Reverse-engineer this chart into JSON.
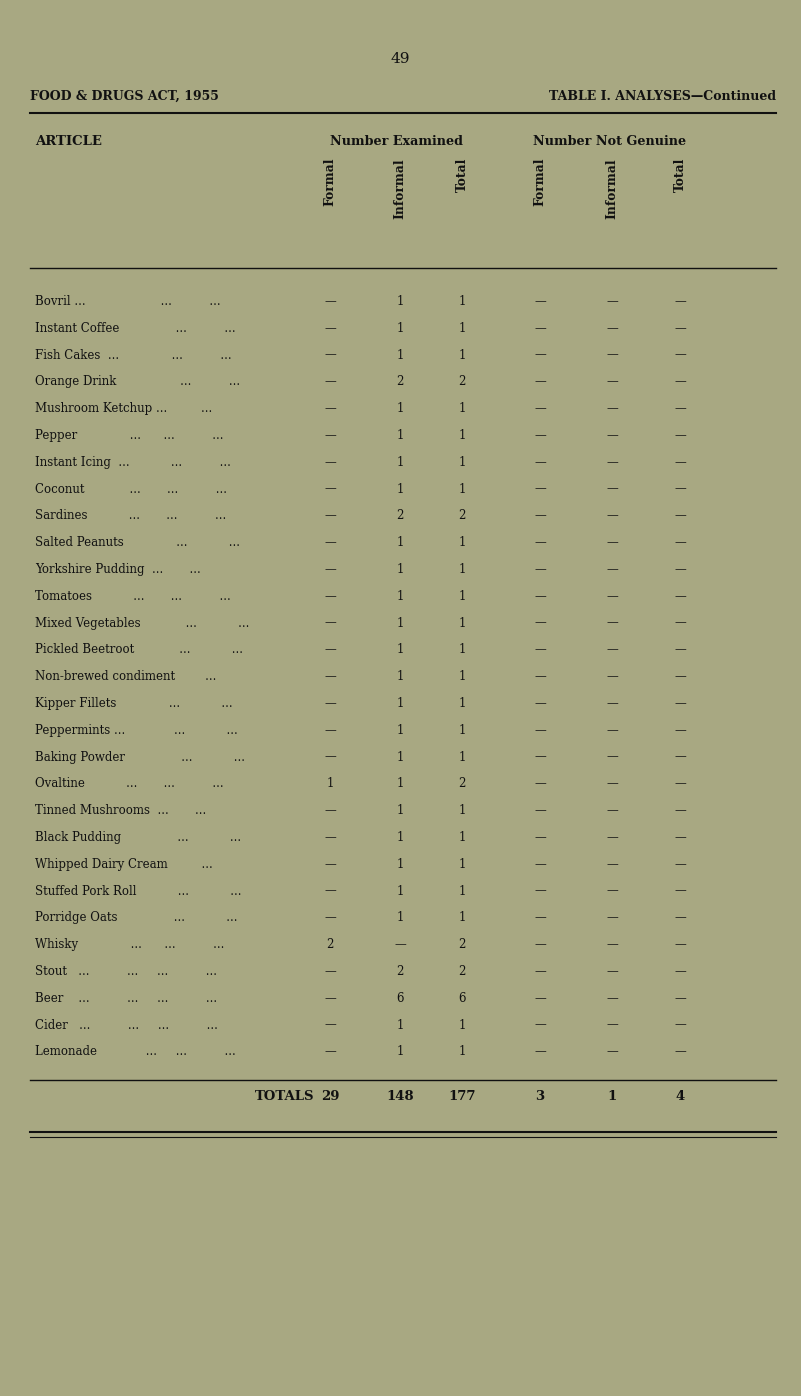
{
  "page_number": "49",
  "left_header": "FOOD & DRUGS ACT, 1955",
  "right_header": "TABLE I. ANALYSES—Continued",
  "col_headers_group1": "Number Examined",
  "col_headers_group2": "Number Not Genuine",
  "col_subheaders": [
    "Formal",
    "Informal",
    "Total",
    "Formal",
    "Informal",
    "Total"
  ],
  "article_col": "ARTICLE",
  "rows": [
    {
      "article": "Bovril ...                    ...          ...",
      "f1": "—",
      "i1": "1",
      "t1": "1",
      "f2": "—",
      "i2": "—",
      "t2": "—"
    },
    {
      "article": "Instant Coffee               ...          ...",
      "f1": "—",
      "i1": "1",
      "t1": "1",
      "f2": "—",
      "i2": "—",
      "t2": "—"
    },
    {
      "article": "Fish Cakes  ...              ...          ...",
      "f1": "—",
      "i1": "1",
      "t1": "1",
      "f2": "—",
      "i2": "—",
      "t2": "—"
    },
    {
      "article": "Orange Drink                 ...          ...",
      "f1": "—",
      "i1": "2",
      "t1": "2",
      "f2": "—",
      "i2": "—",
      "t2": "—"
    },
    {
      "article": "Mushroom Ketchup ...         ...",
      "f1": "—",
      "i1": "1",
      "t1": "1",
      "f2": "—",
      "i2": "—",
      "t2": "—"
    },
    {
      "article": "Pepper              ...      ...          ...",
      "f1": "—",
      "i1": "1",
      "t1": "1",
      "f2": "—",
      "i2": "—",
      "t2": "—"
    },
    {
      "article": "Instant Icing  ...           ...          ...",
      "f1": "—",
      "i1": "1",
      "t1": "1",
      "f2": "—",
      "i2": "—",
      "t2": "—"
    },
    {
      "article": "Coconut            ...       ...          ...",
      "f1": "—",
      "i1": "1",
      "t1": "1",
      "f2": "—",
      "i2": "—",
      "t2": "—"
    },
    {
      "article": "Sardines           ...       ...          ...",
      "f1": "—",
      "i1": "2",
      "t1": "2",
      "f2": "—",
      "i2": "—",
      "t2": "—"
    },
    {
      "article": "Salted Peanuts              ...           ...",
      "f1": "—",
      "i1": "1",
      "t1": "1",
      "f2": "—",
      "i2": "—",
      "t2": "—"
    },
    {
      "article": "Yorkshire Pudding  ...       ...",
      "f1": "—",
      "i1": "1",
      "t1": "1",
      "f2": "—",
      "i2": "—",
      "t2": "—"
    },
    {
      "article": "Tomatoes           ...       ...          ...",
      "f1": "—",
      "i1": "1",
      "t1": "1",
      "f2": "—",
      "i2": "—",
      "t2": "—"
    },
    {
      "article": "Mixed Vegetables            ...           ...",
      "f1": "—",
      "i1": "1",
      "t1": "1",
      "f2": "—",
      "i2": "—",
      "t2": "—"
    },
    {
      "article": "Pickled Beetroot            ...           ...",
      "f1": "—",
      "i1": "1",
      "t1": "1",
      "f2": "—",
      "i2": "—",
      "t2": "—"
    },
    {
      "article": "Non-brewed condiment        ...",
      "f1": "—",
      "i1": "1",
      "t1": "1",
      "f2": "—",
      "i2": "—",
      "t2": "—"
    },
    {
      "article": "Kipper Fillets              ...           ...",
      "f1": "—",
      "i1": "1",
      "t1": "1",
      "f2": "—",
      "i2": "—",
      "t2": "—"
    },
    {
      "article": "Peppermints ...             ...           ...",
      "f1": "—",
      "i1": "1",
      "t1": "1",
      "f2": "—",
      "i2": "—",
      "t2": "—"
    },
    {
      "article": "Baking Powder               ...           ...",
      "f1": "—",
      "i1": "1",
      "t1": "1",
      "f2": "—",
      "i2": "—",
      "t2": "—"
    },
    {
      "article": "Ovaltine           ...       ...          ...",
      "f1": "1",
      "i1": "1",
      "t1": "2",
      "f2": "—",
      "i2": "—",
      "t2": "—"
    },
    {
      "article": "Tinned Mushrooms  ...       ...",
      "f1": "—",
      "i1": "1",
      "t1": "1",
      "f2": "—",
      "i2": "—",
      "t2": "—"
    },
    {
      "article": "Black Pudding               ...           ...",
      "f1": "—",
      "i1": "1",
      "t1": "1",
      "f2": "—",
      "i2": "—",
      "t2": "—"
    },
    {
      "article": "Whipped Dairy Cream         ...",
      "f1": "—",
      "i1": "1",
      "t1": "1",
      "f2": "—",
      "i2": "—",
      "t2": "—"
    },
    {
      "article": "Stuffed Pork Roll           ...           ...",
      "f1": "—",
      "i1": "1",
      "t1": "1",
      "f2": "—",
      "i2": "—",
      "t2": "—"
    },
    {
      "article": "Porridge Oats               ...           ...",
      "f1": "—",
      "i1": "1",
      "t1": "1",
      "f2": "—",
      "i2": "—",
      "t2": "—"
    },
    {
      "article": "Whisky              ...      ...          ...",
      "f1": "2",
      "i1": "—",
      "t1": "2",
      "f2": "—",
      "i2": "—",
      "t2": "—"
    },
    {
      "article": "Stout   ...          ...     ...          ...",
      "f1": "—",
      "i1": "2",
      "t1": "2",
      "f2": "—",
      "i2": "—",
      "t2": "—"
    },
    {
      "article": "Beer    ...          ...     ...          ...",
      "f1": "—",
      "i1": "6",
      "t1": "6",
      "f2": "—",
      "i2": "—",
      "t2": "—"
    },
    {
      "article": "Cider   ...          ...     ...          ...",
      "f1": "—",
      "i1": "1",
      "t1": "1",
      "f2": "—",
      "i2": "—",
      "t2": "—"
    },
    {
      "article": "Lemonade             ...     ...          ...",
      "f1": "—",
      "i1": "1",
      "t1": "1",
      "f2": "—",
      "i2": "—",
      "t2": "—"
    }
  ],
  "totals": [
    "29",
    "148",
    "177",
    "3",
    "1",
    "4"
  ],
  "bg_color": "#a8a882",
  "text_color": "#111111",
  "line_color": "#111111"
}
